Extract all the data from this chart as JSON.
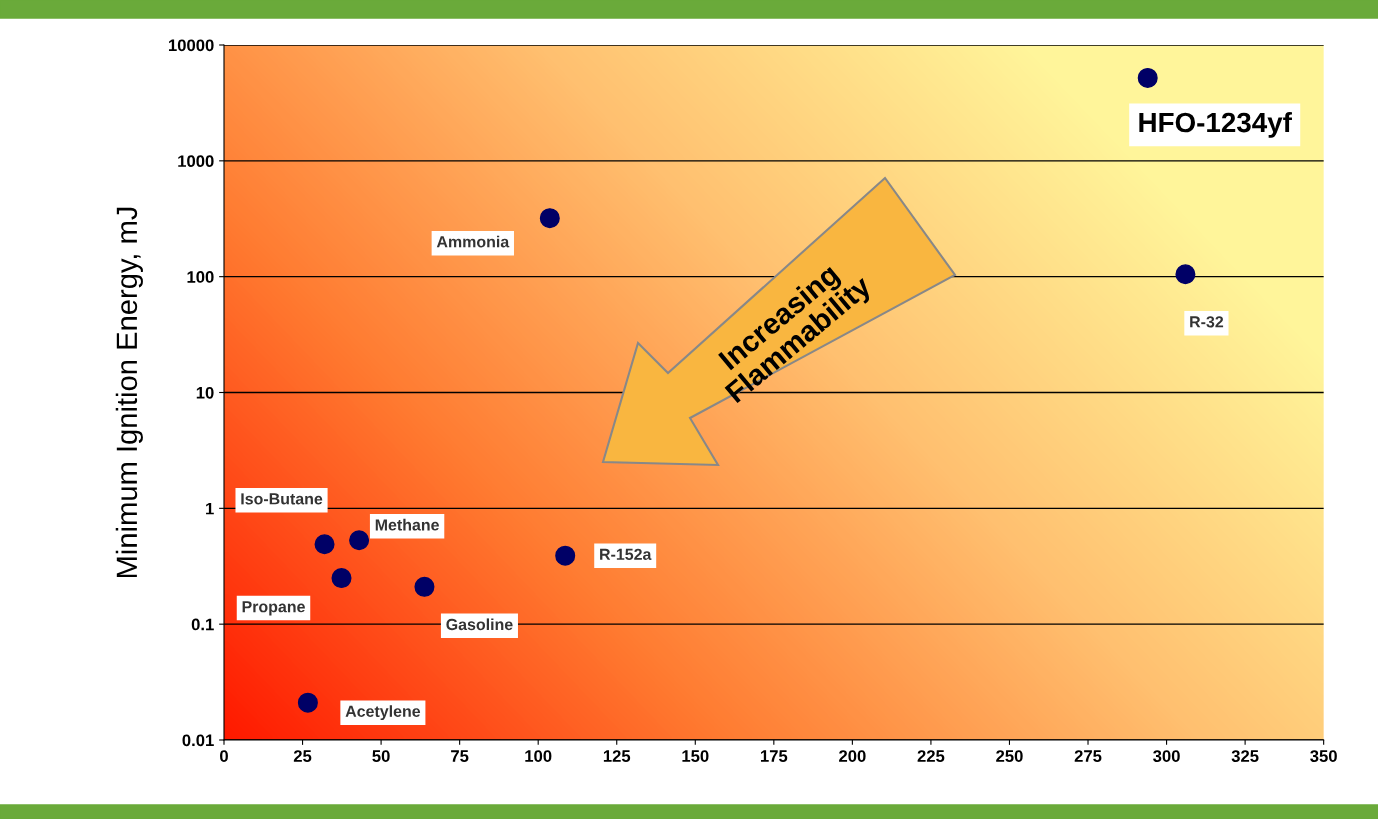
{
  "chart_data": {
    "type": "scatter",
    "ylabel": "Minimum Ignition Energy, mJ",
    "series": [
      {
        "color": "#000066",
        "x": [
          294,
          306,
          103.7,
          32,
          43,
          37.4,
          63.8,
          108.6,
          26.7
        ],
        "values": [
          5200,
          105,
          320,
          0.49,
          0.53,
          0.25,
          0.21,
          0.39,
          0.021
        ]
      }
    ],
    "annotations": [
      {
        "text": "HFO-1234yf",
        "x": 294,
        "y": 5200
      },
      {
        "text": "R-32",
        "x": 306,
        "y": 105
      },
      {
        "text": "Ammonia",
        "x": 103.7,
        "y": 320
      },
      {
        "text": "Iso-Butane",
        "x": 32,
        "y": 0.49
      },
      {
        "text": "Methane",
        "x": 43,
        "y": 0.53
      },
      {
        "text": "Propane",
        "x": 37.4,
        "y": 0.25
      },
      {
        "text": "Gasoline",
        "x": 63.8,
        "y": 0.21
      },
      {
        "text": "R-152a",
        "x": 108.6,
        "y": 0.39
      },
      {
        "text": "Acetylene",
        "x": 26.7,
        "y": 0.021
      },
      "Increasing\nFlammability"
    ],
    "xlim": [
      0,
      350
    ],
    "xticks": [
      0,
      25,
      50,
      75,
      100,
      125,
      150,
      175,
      200,
      225,
      250,
      275,
      300,
      325,
      350
    ],
    "ylim": [
      0.01,
      10000
    ],
    "yticks": [
      0.01,
      0.1,
      1,
      10,
      100,
      1000,
      10000
    ],
    "log": "y",
    "grid": "y",
    "marker": "circle"
  }
}
